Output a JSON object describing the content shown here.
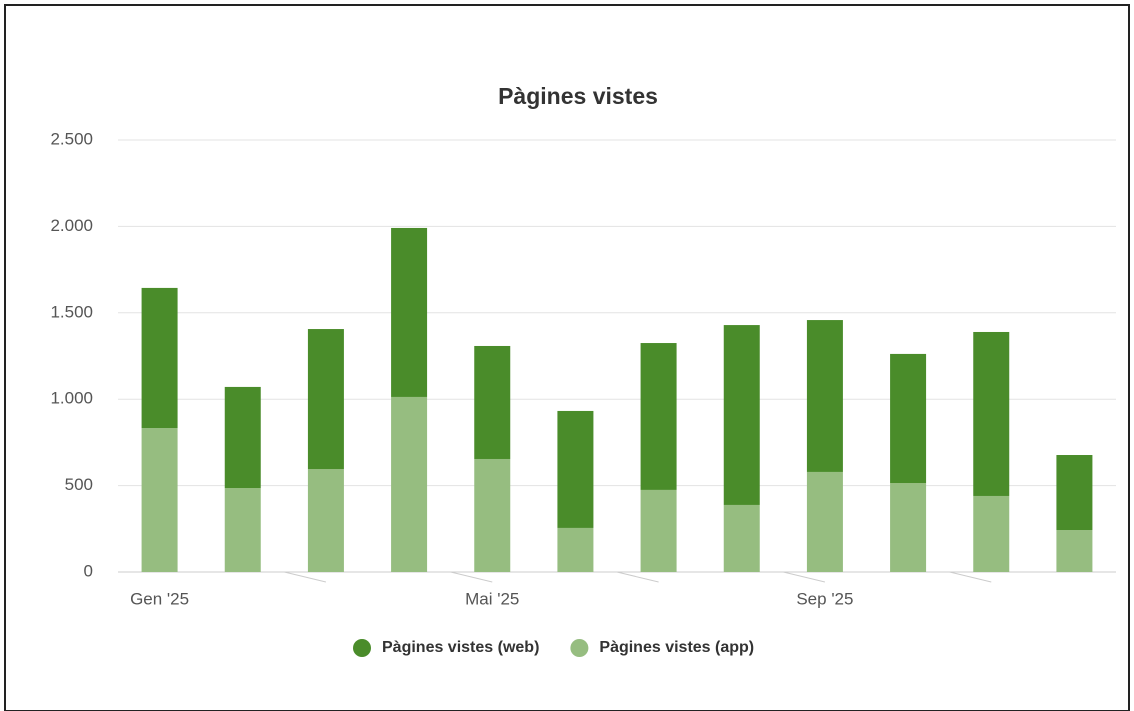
{
  "chart_data": {
    "type": "bar",
    "stacked": true,
    "title": "Pàgines vistes",
    "categories": [
      "Gen '25",
      null,
      null,
      null,
      "Mai '25",
      null,
      null,
      null,
      "Sep '25",
      null,
      null,
      null
    ],
    "series": [
      {
        "name": "Pàgines vistes (web)",
        "color": "#4a8c2a",
        "values": [
          811,
          585,
          810,
          978,
          654,
          677,
          850,
          1041,
          879,
          747,
          949,
          434
        ]
      },
      {
        "name": "Pàgines vistes (app)",
        "color": "#96bd80",
        "values": [
          833,
          486,
          596,
          1013,
          654,
          255,
          475,
          388,
          579,
          515,
          440,
          243
        ]
      }
    ],
    "ylim": [
      0,
      2500
    ],
    "yticks": [
      0,
      500,
      {
        "value": 1000,
        "label": "1.000"
      },
      {
        "value": 1500,
        "label": "1.500"
      },
      {
        "value": 2000,
        "label": "2.000"
      },
      {
        "value": 2500,
        "label": "2.500"
      }
    ],
    "grid": true,
    "legend": "bottom"
  }
}
